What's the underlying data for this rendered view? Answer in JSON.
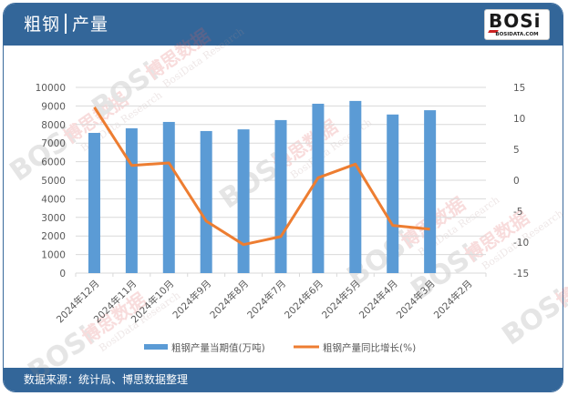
{
  "header": {
    "title_left": "粗钢",
    "title_right": "产量",
    "logo_mark": "BOSi",
    "logo_domain": "BOSIDATA.COM"
  },
  "footer": {
    "source": "数据来源：统计局、博思数据整理"
  },
  "watermark": {
    "brand": "BOSi",
    "cn": "博思数据",
    "en": "BosiData Research"
  },
  "colors": {
    "header_bg": "#336699",
    "bar": "#5b9bd5",
    "line": "#ed7d31",
    "grid": "#d9d9d9",
    "axis_text": "#595959"
  },
  "chart_data": {
    "type": "bar+line",
    "title": "粗钢 | 产量",
    "categories": [
      "2024年12月",
      "2024年11月",
      "2024年10月",
      "2024年9月",
      "2024年8月",
      "2024年7月",
      "2024年6月",
      "2024年5月",
      "2024年4月",
      "2024年3月",
      "2024年2月"
    ],
    "series": [
      {
        "name": "粗钢产量当期值(万吨)",
        "type": "bar",
        "axis": "left",
        "values": [
          7550,
          7800,
          8140,
          7650,
          7740,
          8240,
          9120,
          9270,
          8540,
          8770,
          null
        ]
      },
      {
        "name": "粗钢产量同比增长(%)",
        "type": "line",
        "axis": "right",
        "values": [
          11.8,
          2.4,
          2.8,
          -6.6,
          -10.4,
          -9.1,
          0.4,
          2.6,
          -7.3,
          -7.9,
          null
        ]
      }
    ],
    "left_axis": {
      "min": 0,
      "max": 10000,
      "step": 1000,
      "ticks": [
        "0",
        "1000",
        "2000",
        "3000",
        "4000",
        "5000",
        "6000",
        "7000",
        "8000",
        "9000",
        "10000"
      ]
    },
    "right_axis": {
      "min": -15,
      "max": 15,
      "step": 5,
      "ticks": [
        "-15",
        "-10",
        "-5",
        "0",
        "5",
        "10",
        "15"
      ]
    },
    "grid": true,
    "legend_position": "bottom",
    "xlabel": "",
    "ylabel": ""
  }
}
